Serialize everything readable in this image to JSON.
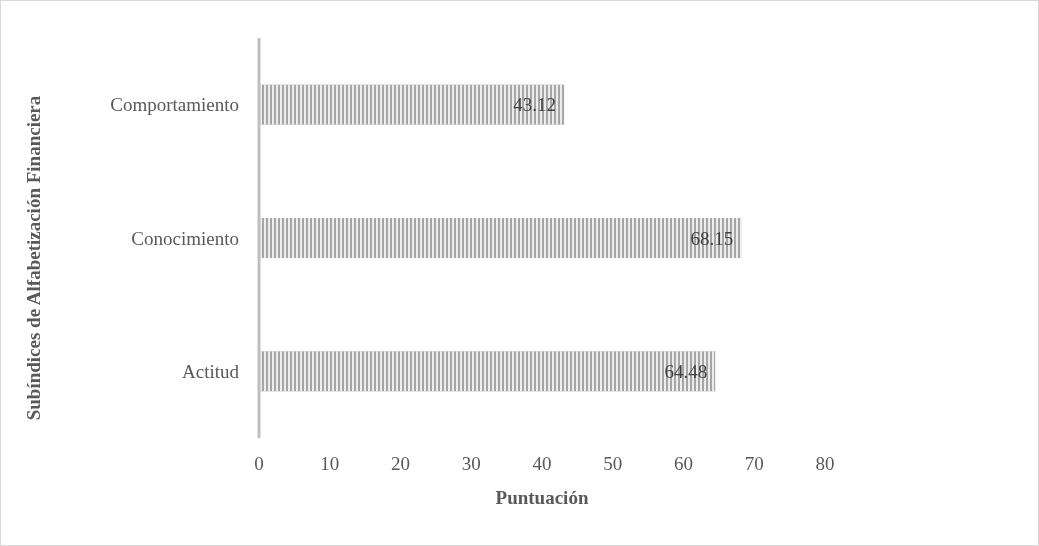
{
  "chart_data": {
    "type": "bar",
    "orientation": "horizontal",
    "xlabel": "Puntuación",
    "ylabel": "Subíndices de Alfabetización Financiera",
    "categories": [
      "Comportamiento",
      "Conocimiento",
      "Actitud"
    ],
    "values": [
      43.12,
      68.15,
      64.48
    ],
    "color": "#a6a6a6",
    "xlim": [
      0,
      80
    ],
    "xticks": [
      0,
      10,
      20,
      30,
      40,
      50,
      60,
      70,
      80
    ],
    "grid": false,
    "data_labels": true
  }
}
